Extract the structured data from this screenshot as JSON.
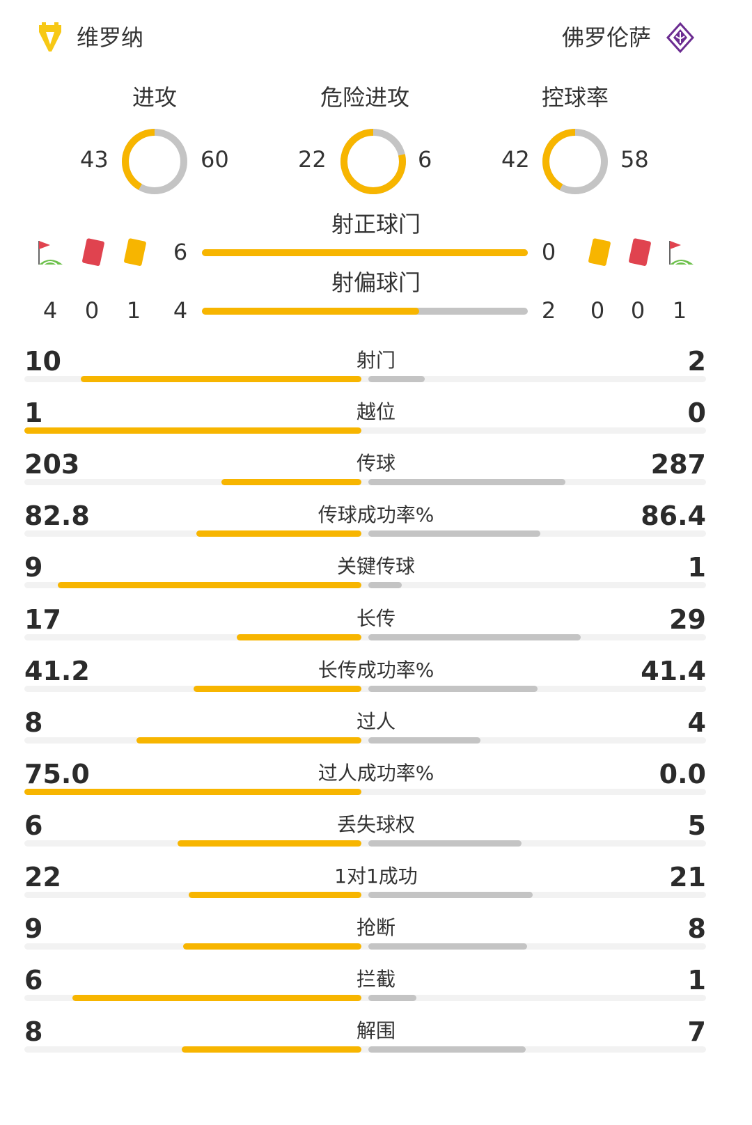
{
  "colors": {
    "home": "#f7b500",
    "away": "#c4c4c4",
    "track": "#f2f2f2",
    "red_card": "#e0434f",
    "yellow_card": "#f7b500",
    "away_brand": "#6b2c91"
  },
  "teams": {
    "home": {
      "name": "维罗纳",
      "logo": "verona-logo"
    },
    "away": {
      "name": "佛罗伦萨",
      "logo": "fiorentina-logo"
    }
  },
  "donuts": [
    {
      "title": "进攻",
      "home": 43,
      "away": 60
    },
    {
      "title": "危险进攻",
      "home": 22,
      "away": 6
    },
    {
      "title": "控球率",
      "home": 42,
      "away": 58
    }
  ],
  "shots_block": {
    "on_target": {
      "title": "射正球门",
      "home": 6,
      "away": 0
    },
    "off_target": {
      "title": "射偏球门",
      "home": 4,
      "away": 2
    },
    "home_counts": {
      "corners": 4,
      "red": 0,
      "yellow": 1
    },
    "away_counts": {
      "yellow": 0,
      "red": 0,
      "corners": 1
    },
    "icons": [
      "corner-flag-icon",
      "red-card-icon",
      "yellow-card-icon"
    ]
  },
  "stats": [
    {
      "label": "射门",
      "home": "10",
      "away": "2"
    },
    {
      "label": "越位",
      "home": "1",
      "away": "0"
    },
    {
      "label": "传球",
      "home": "203",
      "away": "287"
    },
    {
      "label": "传球成功率%",
      "home": "82.8",
      "away": "86.4"
    },
    {
      "label": "关键传球",
      "home": "9",
      "away": "1"
    },
    {
      "label": "长传",
      "home": "17",
      "away": "29"
    },
    {
      "label": "长传成功率%",
      "home": "41.2",
      "away": "41.4"
    },
    {
      "label": "过人",
      "home": "8",
      "away": "4"
    },
    {
      "label": "过人成功率%",
      "home": "75.0",
      "away": "0.0"
    },
    {
      "label": "丢失球权",
      "home": "6",
      "away": "5"
    },
    {
      "label": "1对1成功",
      "home": "22",
      "away": "21"
    },
    {
      "label": "抢断",
      "home": "9",
      "away": "8"
    },
    {
      "label": "拦截",
      "home": "6",
      "away": "1"
    },
    {
      "label": "解围",
      "home": "8",
      "away": "7"
    }
  ]
}
